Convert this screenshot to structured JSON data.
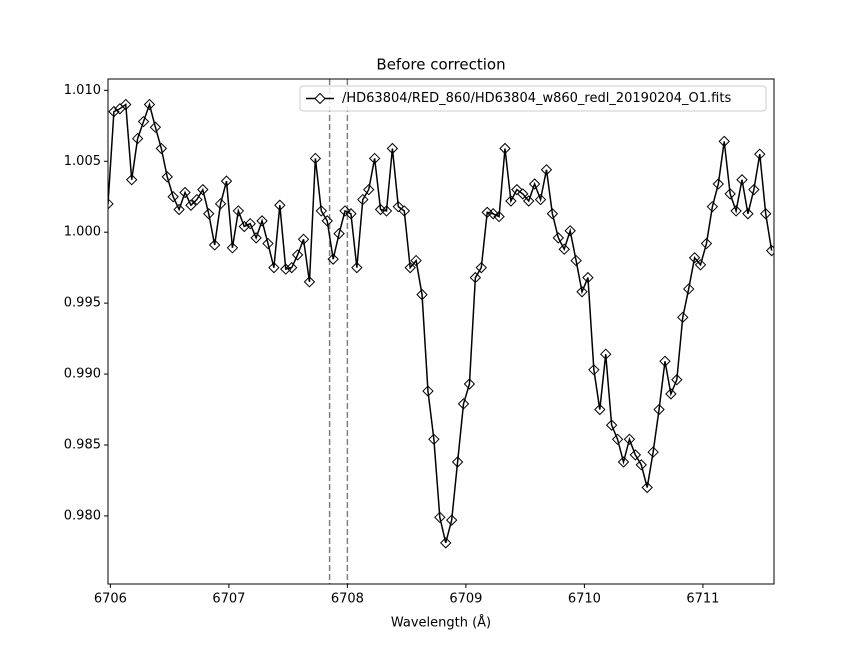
{
  "chart_data": {
    "type": "line",
    "title": "Before correction",
    "x_label": "Wavelength (Å)",
    "x": [
      6705.98,
      6706.03,
      6706.08,
      6706.13,
      6706.18,
      6706.23,
      6706.28,
      6706.33,
      6706.38,
      6706.43,
      6706.48,
      6706.53,
      6706.58,
      6706.63,
      6706.68,
      6706.73,
      6706.78,
      6706.83,
      6706.88,
      6706.93,
      6706.98,
      6707.03,
      6707.08,
      6707.13,
      6707.18,
      6707.23,
      6707.28,
      6707.33,
      6707.38,
      6707.43,
      6707.48,
      6707.53,
      6707.58,
      6707.63,
      6707.68,
      6707.73,
      6707.78,
      6707.83,
      6707.88,
      6707.93,
      6707.98,
      6708.03,
      6708.08,
      6708.13,
      6708.18,
      6708.23,
      6708.28,
      6708.33,
      6708.38,
      6708.43,
      6708.48,
      6708.53,
      6708.58,
      6708.63,
      6708.68,
      6708.73,
      6708.78,
      6708.83,
      6708.88,
      6708.93,
      6708.98,
      6709.03,
      6709.08,
      6709.13,
      6709.18,
      6709.23,
      6709.28,
      6709.33,
      6709.38,
      6709.43,
      6709.48,
      6709.53,
      6709.58,
      6709.63,
      6709.68,
      6709.73,
      6709.78,
      6709.83,
      6709.88,
      6709.93,
      6709.98,
      6710.03,
      6710.08,
      6710.13,
      6710.18,
      6710.23,
      6710.28,
      6710.33,
      6710.38,
      6710.43,
      6710.48,
      6710.53,
      6710.58,
      6710.63,
      6710.68,
      6710.73,
      6710.78,
      6710.83,
      6710.88,
      6710.93,
      6710.98,
      6711.03,
      6711.08,
      6711.13,
      6711.18,
      6711.23,
      6711.28,
      6711.33,
      6711.38,
      6711.43,
      6711.48,
      6711.53,
      6711.58
    ],
    "series": [
      {
        "name": "/HD63804/RED_860/HD63804_w860_redl_20190204_O1.fits",
        "color": "#000000",
        "marker": "diamond",
        "values": [
          1.002,
          1.0085,
          1.0087,
          1.009,
          1.0037,
          1.0066,
          1.0078,
          1.009,
          1.0074,
          1.0059,
          1.0039,
          1.0025,
          1.0016,
          1.0028,
          1.0019,
          1.0023,
          1.003,
          1.0013,
          0.9991,
          1.002,
          1.0036,
          0.9989,
          1.0015,
          1.0004,
          1.0006,
          0.9996,
          1.0008,
          0.9992,
          0.9975,
          1.0019,
          0.9974,
          0.9975,
          0.9984,
          0.9995,
          0.9965,
          1.0052,
          1.0015,
          1.0008,
          0.9981,
          0.9999,
          1.0015,
          1.0013,
          0.9975,
          1.0023,
          1.003,
          1.0052,
          1.0016,
          1.0015,
          1.0059,
          1.0018,
          1.0015,
          0.9975,
          0.998,
          0.9956,
          0.9888,
          0.9854,
          0.9799,
          0.9781,
          0.9797,
          0.9838,
          0.9879,
          0.9893,
          0.9968,
          0.9975,
          1.0014,
          1.0013,
          1.0011,
          1.0059,
          1.0022,
          1.003,
          1.0027,
          1.0022,
          1.0034,
          1.0023,
          1.0044,
          1.0013,
          0.9996,
          0.9988,
          1.0001,
          0.998,
          0.9958,
          0.9968,
          0.9903,
          0.9875,
          0.9914,
          0.9864,
          0.9854,
          0.9838,
          0.9854,
          0.9843,
          0.9836,
          0.982,
          0.9845,
          0.9875,
          0.9909,
          0.9886,
          0.9896,
          0.994,
          0.996,
          0.9982,
          0.9977,
          0.9992,
          1.0018,
          1.0034,
          1.0064,
          1.0027,
          1.0015,
          1.0037,
          1.0013,
          1.003,
          1.0055,
          1.0013,
          0.9987
        ]
      }
    ],
    "vlines": {
      "x": [
        6707.85,
        6708.0
      ],
      "color": "#808080",
      "style": "dashed"
    },
    "xlim": [
      6705.98,
      6711.6
    ],
    "ylim": [
      0.9752,
      1.0108
    ],
    "xticks": [
      6706,
      6707,
      6708,
      6709,
      6710,
      6711
    ],
    "yticks": [
      {
        "value": 0.98,
        "label": "0.980"
      },
      0.985,
      {
        "value": 0.99,
        "label": "0.990"
      },
      0.995,
      {
        "value": 1.0,
        "label": "1.000"
      },
      1.005,
      {
        "value": 1.01,
        "label": "1.010"
      }
    ],
    "legend": "upper right",
    "grid": false
  }
}
